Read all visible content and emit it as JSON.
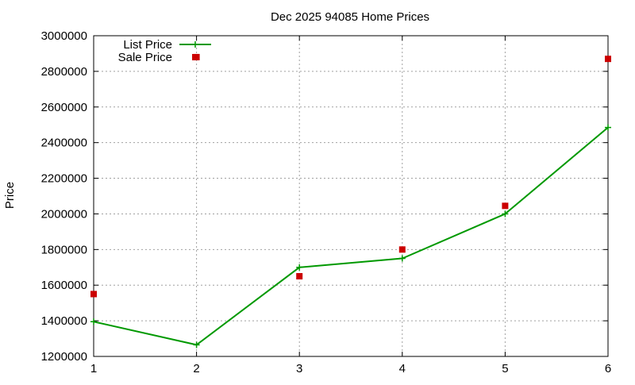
{
  "chart_data": {
    "type": "line",
    "title": "Dec 2025 94085 Home Prices",
    "xlabel": "",
    "ylabel": "Price",
    "x": [
      1,
      2,
      3,
      4,
      5,
      6
    ],
    "xlim": [
      1,
      6
    ],
    "ylim": [
      1200000,
      3000000
    ],
    "xticks": [
      "1",
      "2",
      "3",
      "4",
      "5",
      "6"
    ],
    "yticks": [
      "1200000",
      "1400000",
      "1600000",
      "1800000",
      "2000000",
      "2200000",
      "2400000",
      "2600000",
      "2800000",
      "3000000"
    ],
    "grid": true,
    "legend_position": "top-left",
    "series": [
      {
        "name": "List Price",
        "style": "line-with-plus-markers",
        "color": "#009900",
        "values": [
          1395000,
          1265000,
          1700000,
          1750000,
          2000000,
          2485000
        ]
      },
      {
        "name": "Sale Price",
        "style": "square-markers",
        "color": "#cc0000",
        "values": [
          1550000,
          2880000,
          1650000,
          1800000,
          2045000,
          2870000
        ]
      }
    ]
  }
}
